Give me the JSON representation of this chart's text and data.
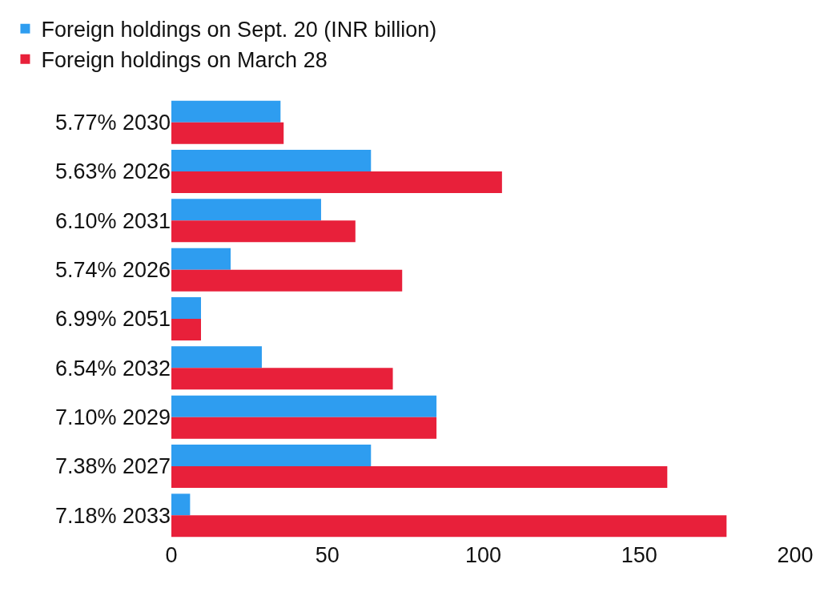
{
  "chart_data": {
    "type": "bar",
    "orientation": "horizontal",
    "categories": [
      "5.77% 2030",
      "5.63% 2026",
      "6.10% 2031",
      "5.74% 2026",
      "6.99% 2051",
      "6.54% 2032",
      "7.10% 2029",
      "7.38% 2027",
      "7.18% 2033"
    ],
    "series": [
      {
        "name": "Foreign holdings on Sept. 20 (INR billion)",
        "color": "#2e9df0",
        "values": [
          35,
          64,
          48,
          19,
          9.5,
          29,
          85,
          64,
          6
        ]
      },
      {
        "name": "Foreign holdings on March 28",
        "color": "#e8203a",
        "values": [
          36,
          106,
          59,
          74,
          9.5,
          71,
          85,
          159,
          178
        ]
      }
    ],
    "xlim": [
      0,
      200
    ],
    "xticks": [
      0,
      50,
      100,
      150,
      200
    ],
    "grid": false,
    "legend": "top left"
  }
}
